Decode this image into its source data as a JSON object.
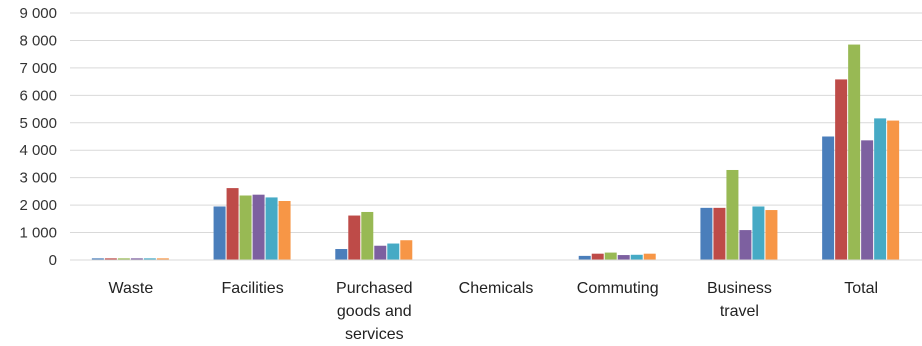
{
  "chart_data": {
    "type": "bar",
    "categories": [
      [
        "Waste"
      ],
      [
        "Facilities"
      ],
      [
        "Purchased",
        "goods and",
        "services"
      ],
      [
        "Chemicals"
      ],
      [
        "Commuting"
      ],
      [
        "Business",
        "travel"
      ],
      [
        "Total"
      ]
    ],
    "series": [
      {
        "color": "#4a7ebb",
        "values": [
          60,
          1950,
          400,
          10,
          150,
          1900,
          4500
        ]
      },
      {
        "color": "#be4b48",
        "values": [
          60,
          2620,
          1620,
          10,
          230,
          1900,
          6580
        ]
      },
      {
        "color": "#98b954",
        "values": [
          60,
          2350,
          1750,
          10,
          270,
          3280,
          7850
        ]
      },
      {
        "color": "#7d60a0",
        "values": [
          60,
          2380,
          520,
          10,
          180,
          1090,
          4360
        ]
      },
      {
        "color": "#46aac5",
        "values": [
          60,
          2280,
          600,
          10,
          190,
          1950,
          5160
        ]
      },
      {
        "color": "#f79646",
        "values": [
          60,
          2150,
          720,
          10,
          230,
          1820,
          5080
        ]
      }
    ],
    "ylim": [
      0,
      9000
    ],
    "yticks": [
      "0",
      "1 000",
      "2 000",
      "3 000",
      "4 000",
      "5 000",
      "6 000",
      "7 000",
      "8 000",
      "9 000"
    ],
    "ytick_values": [
      0,
      1000,
      2000,
      3000,
      4000,
      5000,
      6000,
      7000,
      8000,
      9000
    ],
    "grid": true,
    "legend": "none"
  }
}
